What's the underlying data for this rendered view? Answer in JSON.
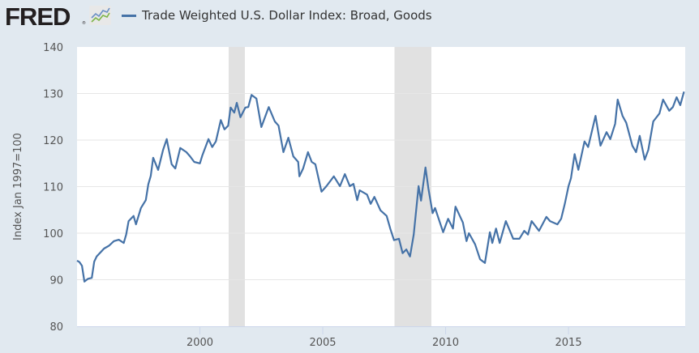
{
  "brand": {
    "name": "FRED",
    "registered": "®",
    "icon": "line-chart-icon"
  },
  "colors": {
    "series": "#4572a7",
    "recession": "#e1e1e1",
    "background": "#e1e9f0",
    "plot": "#ffffff",
    "grid": "#e6e6e6"
  },
  "chart_data": {
    "type": "line",
    "title": "",
    "legend": [
      "Trade Weighted U.S. Dollar Index: Broad, Goods"
    ],
    "legend_position": "top-left",
    "xlabel": "",
    "ylabel": "Index Jan 1997=100",
    "xlim": [
      1995.0,
      2019.75
    ],
    "ylim": [
      80,
      140
    ],
    "grid": true,
    "x_ticks": [
      2000,
      2005,
      2010,
      2015
    ],
    "x_tick_labels": [
      "2000",
      "2005",
      "2010",
      "2015"
    ],
    "y_ticks": [
      80,
      90,
      100,
      110,
      120,
      130,
      140
    ],
    "y_tick_labels": [
      "80",
      "90",
      "100",
      "110",
      "120",
      "130",
      "140"
    ],
    "recessions": [
      [
        2001.17,
        2001.83
      ],
      [
        2007.92,
        2009.42
      ]
    ],
    "series": [
      {
        "name": "Trade Weighted U.S. Dollar Index: Broad, Goods",
        "x": [
          1995.0,
          1995.1,
          1995.2,
          1995.3,
          1995.45,
          1995.6,
          1995.7,
          1995.8,
          1996.1,
          1996.3,
          1996.5,
          1996.7,
          1996.9,
          1997.0,
          1997.1,
          1997.3,
          1997.4,
          1997.6,
          1997.8,
          1997.9,
          1998.0,
          1998.1,
          1998.3,
          1998.5,
          1998.65,
          1998.85,
          1999.0,
          1999.2,
          1999.45,
          1999.6,
          1999.77,
          2000.0,
          2000.1,
          2000.35,
          2000.5,
          2000.65,
          2000.85,
          2001.0,
          2001.15,
          2001.25,
          2001.4,
          2001.5,
          2001.65,
          2001.85,
          2001.97,
          2002.1,
          2002.3,
          2002.5,
          2002.8,
          2003.05,
          2003.2,
          2003.4,
          2003.6,
          2003.8,
          2004.0,
          2004.05,
          2004.2,
          2004.4,
          2004.55,
          2004.7,
          2004.95,
          2005.15,
          2005.45,
          2005.7,
          2005.9,
          2006.1,
          2006.25,
          2006.4,
          2006.5,
          2006.8,
          2006.95,
          2007.1,
          2007.35,
          2007.6,
          2007.75,
          2007.9,
          2008.1,
          2008.25,
          2008.4,
          2008.55,
          2008.7,
          2008.9,
          2009.0,
          2009.18,
          2009.3,
          2009.47,
          2009.57,
          2009.9,
          2010.1,
          2010.3,
          2010.4,
          2010.7,
          2010.85,
          2010.95,
          2011.2,
          2011.4,
          2011.6,
          2011.8,
          2011.9,
          2012.05,
          2012.2,
          2012.45,
          2012.75,
          2013.0,
          2013.2,
          2013.35,
          2013.5,
          2013.8,
          2014.1,
          2014.25,
          2014.55,
          2014.7,
          2014.85,
          2015.0,
          2015.1,
          2015.25,
          2015.4,
          2015.65,
          2015.8,
          2016.1,
          2016.3,
          2016.55,
          2016.7,
          2016.9,
          2017.0,
          2017.2,
          2017.35,
          2017.6,
          2017.75,
          2017.9,
          2018.1,
          2018.25,
          2018.45,
          2018.7,
          2018.85,
          2019.1,
          2019.25,
          2019.4,
          2019.55,
          2019.7
        ],
        "y": [
          94.1,
          93.8,
          93.0,
          89.6,
          90.2,
          90.4,
          93.9,
          95.0,
          96.7,
          97.3,
          98.3,
          98.6,
          97.9,
          99.7,
          102.6,
          103.7,
          101.9,
          105.4,
          107.1,
          110.5,
          112.3,
          116.2,
          113.6,
          117.9,
          120.2,
          114.8,
          113.9,
          118.3,
          117.4,
          116.5,
          115.3,
          115.0,
          116.7,
          120.2,
          118.5,
          119.7,
          124.3,
          122.3,
          123.1,
          127.0,
          125.9,
          128.0,
          124.9,
          127.0,
          127.1,
          129.7,
          128.9,
          122.8,
          127.1,
          124.0,
          123.1,
          117.4,
          120.5,
          116.5,
          115.3,
          112.2,
          113.9,
          117.4,
          115.3,
          114.8,
          108.9,
          110.1,
          112.2,
          110.1,
          112.7,
          110.1,
          110.6,
          107.1,
          109.2,
          108.3,
          106.3,
          107.8,
          104.9,
          103.7,
          100.9,
          98.5,
          98.8,
          95.7,
          96.5,
          95.0,
          99.7,
          110.1,
          107.0,
          114.1,
          109.6,
          104.3,
          105.4,
          100.2,
          103.1,
          101.0,
          105.7,
          102.3,
          98.3,
          100.0,
          97.6,
          94.4,
          93.6,
          100.2,
          97.9,
          101.0,
          97.9,
          102.6,
          98.8,
          98.8,
          100.5,
          99.7,
          102.6,
          100.5,
          103.5,
          102.6,
          101.9,
          103.1,
          106.3,
          110.1,
          111.8,
          117.0,
          113.6,
          119.7,
          118.5,
          125.2,
          118.8,
          121.7,
          120.2,
          123.5,
          128.7,
          125.2,
          123.7,
          118.8,
          117.4,
          120.9,
          115.8,
          117.9,
          124.0,
          125.7,
          128.7,
          126.3,
          127.1,
          129.2,
          127.5,
          130.4
        ]
      }
    ]
  }
}
